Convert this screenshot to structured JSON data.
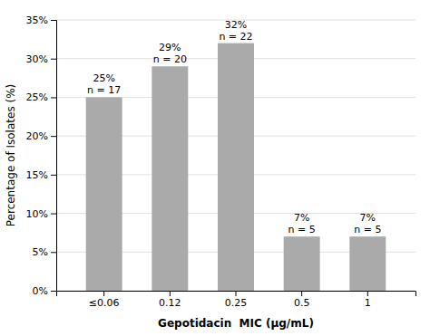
{
  "chart_data": {
    "type": "bar",
    "categories": [
      "≤0.06",
      "0.12",
      "0.25",
      "0.5",
      "1"
    ],
    "values": [
      25,
      29,
      32,
      7,
      7
    ],
    "value_labels": [
      "25%",
      "29%",
      "32%",
      "7%",
      "7%"
    ],
    "counts": [
      17,
      20,
      22,
      5,
      5
    ],
    "count_labels": [
      "n = 17",
      "n = 20",
      "n = 22",
      "n = 5",
      "n = 5"
    ],
    "data_labels": true,
    "color": "#aaaaaa",
    "xlabel": "Gepotidacin  MIC (μg/mL)",
    "ylabel": "Percentage of Isolates (%)",
    "ylim": [
      0,
      35
    ],
    "yticks": [
      {
        "value": 0,
        "label": "0%"
      },
      {
        "value": 5,
        "label": "5%"
      },
      {
        "value": 10,
        "label": "10%"
      },
      {
        "value": 15,
        "label": "15%"
      },
      {
        "value": 20,
        "label": "20%"
      },
      {
        "value": 25,
        "label": "25%"
      },
      {
        "value": 30,
        "label": "30%"
      },
      {
        "value": 35,
        "label": "35%"
      }
    ],
    "grid": true
  }
}
